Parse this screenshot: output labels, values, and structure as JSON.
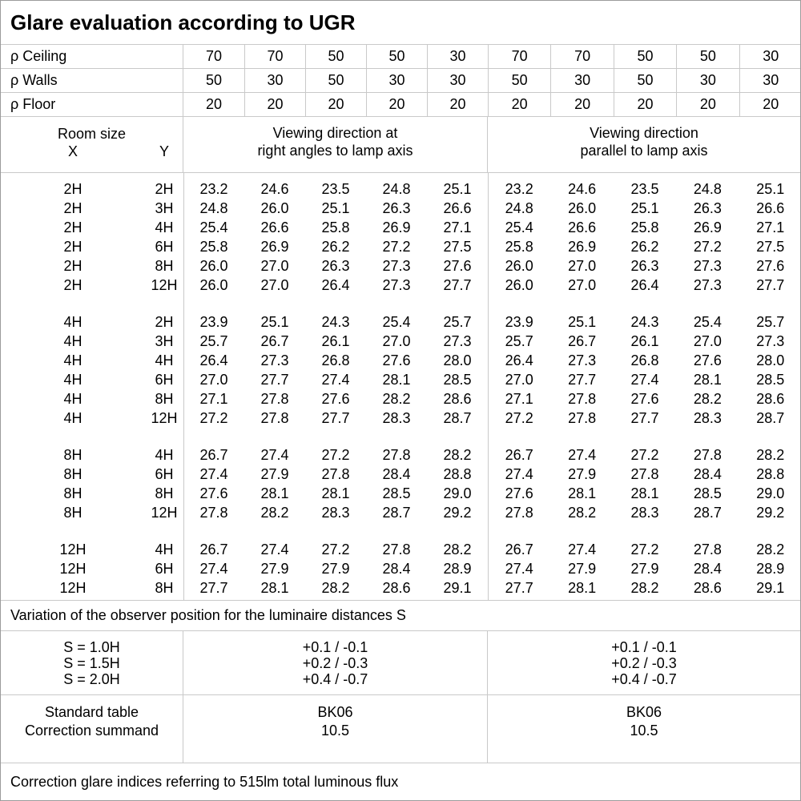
{
  "title": "Glare evaluation according to UGR",
  "colors": {
    "background": "#ffffff",
    "text": "#000000",
    "grid_line": "#c9c9c9",
    "outer_border": "#9b9b9b"
  },
  "header": {
    "room_size_label": "Room size",
    "x_label": "X",
    "y_label": "Y",
    "direction_left": "Viewing direction at\nright angles to lamp axis",
    "direction_right": "Viewing direction\nparallel to lamp axis"
  },
  "chart_data": {
    "type": "table",
    "reflectance_rows": [
      {
        "label": "ρ Ceiling",
        "values": [
          "70",
          "70",
          "50",
          "50",
          "30",
          "70",
          "70",
          "50",
          "50",
          "30"
        ]
      },
      {
        "label": "ρ Walls",
        "values": [
          "50",
          "30",
          "50",
          "30",
          "30",
          "50",
          "30",
          "50",
          "30",
          "30"
        ]
      },
      {
        "label": "ρ Floor",
        "values": [
          "20",
          "20",
          "20",
          "20",
          "20",
          "20",
          "20",
          "20",
          "20",
          "20"
        ]
      }
    ],
    "row_groups": [
      {
        "x": "2H",
        "rows": [
          {
            "y": "2H",
            "values": [
              "23.2",
              "24.6",
              "23.5",
              "24.8",
              "25.1",
              "23.2",
              "24.6",
              "23.5",
              "24.8",
              "25.1"
            ]
          },
          {
            "y": "3H",
            "values": [
              "24.8",
              "26.0",
              "25.1",
              "26.3",
              "26.6",
              "24.8",
              "26.0",
              "25.1",
              "26.3",
              "26.6"
            ]
          },
          {
            "y": "4H",
            "values": [
              "25.4",
              "26.6",
              "25.8",
              "26.9",
              "27.1",
              "25.4",
              "26.6",
              "25.8",
              "26.9",
              "27.1"
            ]
          },
          {
            "y": "6H",
            "values": [
              "25.8",
              "26.9",
              "26.2",
              "27.2",
              "27.5",
              "25.8",
              "26.9",
              "26.2",
              "27.2",
              "27.5"
            ]
          },
          {
            "y": "8H",
            "values": [
              "26.0",
              "27.0",
              "26.3",
              "27.3",
              "27.6",
              "26.0",
              "27.0",
              "26.3",
              "27.3",
              "27.6"
            ]
          },
          {
            "y": "12H",
            "values": [
              "26.0",
              "27.0",
              "26.4",
              "27.3",
              "27.7",
              "26.0",
              "27.0",
              "26.4",
              "27.3",
              "27.7"
            ]
          }
        ]
      },
      {
        "x": "4H",
        "rows": [
          {
            "y": "2H",
            "values": [
              "23.9",
              "25.1",
              "24.3",
              "25.4",
              "25.7",
              "23.9",
              "25.1",
              "24.3",
              "25.4",
              "25.7"
            ]
          },
          {
            "y": "3H",
            "values": [
              "25.7",
              "26.7",
              "26.1",
              "27.0",
              "27.3",
              "25.7",
              "26.7",
              "26.1",
              "27.0",
              "27.3"
            ]
          },
          {
            "y": "4H",
            "values": [
              "26.4",
              "27.3",
              "26.8",
              "27.6",
              "28.0",
              "26.4",
              "27.3",
              "26.8",
              "27.6",
              "28.0"
            ]
          },
          {
            "y": "6H",
            "values": [
              "27.0",
              "27.7",
              "27.4",
              "28.1",
              "28.5",
              "27.0",
              "27.7",
              "27.4",
              "28.1",
              "28.5"
            ]
          },
          {
            "y": "8H",
            "values": [
              "27.1",
              "27.8",
              "27.6",
              "28.2",
              "28.6",
              "27.1",
              "27.8",
              "27.6",
              "28.2",
              "28.6"
            ]
          },
          {
            "y": "12H",
            "values": [
              "27.2",
              "27.8",
              "27.7",
              "28.3",
              "28.7",
              "27.2",
              "27.8",
              "27.7",
              "28.3",
              "28.7"
            ]
          }
        ]
      },
      {
        "x": "8H",
        "rows": [
          {
            "y": "4H",
            "values": [
              "26.7",
              "27.4",
              "27.2",
              "27.8",
              "28.2",
              "26.7",
              "27.4",
              "27.2",
              "27.8",
              "28.2"
            ]
          },
          {
            "y": "6H",
            "values": [
              "27.4",
              "27.9",
              "27.8",
              "28.4",
              "28.8",
              "27.4",
              "27.9",
              "27.8",
              "28.4",
              "28.8"
            ]
          },
          {
            "y": "8H",
            "values": [
              "27.6",
              "28.1",
              "28.1",
              "28.5",
              "29.0",
              "27.6",
              "28.1",
              "28.1",
              "28.5",
              "29.0"
            ]
          },
          {
            "y": "12H",
            "values": [
              "27.8",
              "28.2",
              "28.3",
              "28.7",
              "29.2",
              "27.8",
              "28.2",
              "28.3",
              "28.7",
              "29.2"
            ]
          }
        ]
      },
      {
        "x": "12H",
        "rows": [
          {
            "y": "4H",
            "values": [
              "26.7",
              "27.4",
              "27.2",
              "27.8",
              "28.2",
              "26.7",
              "27.4",
              "27.2",
              "27.8",
              "28.2"
            ]
          },
          {
            "y": "6H",
            "values": [
              "27.4",
              "27.9",
              "27.9",
              "28.4",
              "28.9",
              "27.4",
              "27.9",
              "27.9",
              "28.4",
              "28.9"
            ]
          },
          {
            "y": "8H",
            "values": [
              "27.7",
              "28.1",
              "28.2",
              "28.6",
              "29.1",
              "27.7",
              "28.1",
              "28.2",
              "28.6",
              "29.1"
            ]
          }
        ]
      }
    ]
  },
  "variation_note": "Variation of the observer position for the luminaire distances S",
  "s_variation": {
    "labels": [
      "S = 1.0H",
      "S = 1.5H",
      "S = 2.0H"
    ],
    "left_values": [
      "+0.1 / -0.1",
      "+0.2 / -0.3",
      "+0.4 / -0.7"
    ],
    "right_values": [
      "+0.1 / -0.1",
      "+0.2 / -0.3",
      "+0.4 / -0.7"
    ]
  },
  "standard": {
    "table_label": "Standard table",
    "table_left": "BK06",
    "table_right": "BK06",
    "summand_label": "Correction summand",
    "summand_left": "10.5",
    "summand_right": "10.5"
  },
  "footer_note": "Correction glare indices referring to 515lm total luminous flux"
}
